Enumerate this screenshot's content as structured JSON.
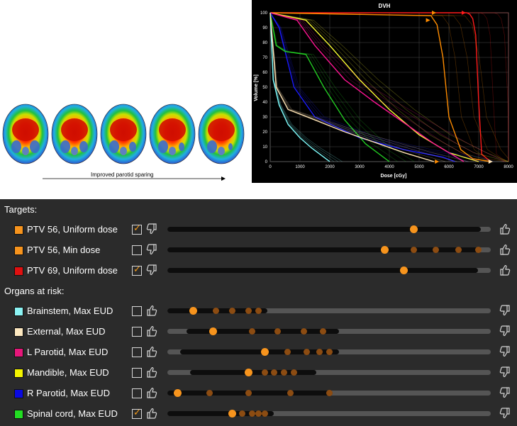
{
  "thumbnails": {
    "caption": "Improved parotid sparing",
    "count": 5
  },
  "dvh": {
    "title": "DVH",
    "xlabel": "Dose [cGy]",
    "ylabel": "Volume [%]",
    "x_ticks": [
      "0",
      "1000",
      "2000",
      "3000",
      "4000",
      "5000",
      "6000",
      "7000",
      "8000"
    ],
    "y_ticks": [
      "0",
      "10",
      "20",
      "30",
      "40",
      "50",
      "60",
      "70",
      "80",
      "90",
      "100"
    ]
  },
  "chart_data": {
    "type": "line",
    "title": "DVH",
    "xlabel": "Dose [cGy]",
    "ylabel": "Volume [%]",
    "xlim": [
      0,
      8000
    ],
    "ylim": [
      0,
      100
    ],
    "grid": true,
    "series": [
      {
        "color": "#ff1a1a",
        "x": [
          0,
          6600,
          6700,
          6800,
          6900,
          7000,
          7100,
          7400
        ],
        "y": [
          100,
          100,
          99,
          96,
          85,
          40,
          5,
          0
        ]
      },
      {
        "color": "#ff8c00",
        "x": [
          0,
          5400,
          5600,
          5800,
          6000,
          6400,
          6800,
          7400
        ],
        "y": [
          100,
          98,
          92,
          70,
          30,
          8,
          2,
          0
        ]
      },
      {
        "color": "#ffff33",
        "x": [
          0,
          1200,
          2000,
          3000,
          4000,
          5000,
          6000,
          7000
        ],
        "y": [
          100,
          95,
          78,
          55,
          35,
          18,
          6,
          0
        ]
      },
      {
        "color": "#ff1493",
        "x": [
          0,
          900,
          1500,
          2500,
          3500,
          4500,
          5500,
          6500
        ],
        "y": [
          100,
          95,
          78,
          55,
          40,
          26,
          12,
          0
        ]
      },
      {
        "color": "#1a1aff",
        "x": [
          0,
          300,
          800,
          1500,
          3000,
          4500,
          5800,
          6200
        ],
        "y": [
          100,
          90,
          50,
          30,
          16,
          8,
          3,
          0
        ]
      },
      {
        "color": "#22cc22",
        "x": [
          0,
          200,
          500,
          1200,
          1800,
          2500,
          3200,
          4000
        ],
        "y": [
          100,
          78,
          74,
          72,
          50,
          28,
          12,
          0
        ]
      },
      {
        "color": "#80ffff",
        "x": [
          0,
          100,
          300,
          600,
          1000,
          1400,
          1800,
          2000
        ],
        "y": [
          100,
          55,
          38,
          25,
          16,
          9,
          3,
          0
        ]
      },
      {
        "color": "#ffe4b5",
        "x": [
          0,
          200,
          600,
          1500,
          2500,
          3500,
          4500,
          5500
        ],
        "y": [
          100,
          50,
          35,
          28,
          20,
          13,
          6,
          0
        ]
      }
    ]
  },
  "targets": {
    "title": "Targets:",
    "rows": [
      {
        "label": "PTV 56, Uniform dose",
        "color": "#f7941d",
        "checked": true,
        "range": [
          0,
          0.97
        ],
        "thumb": 0.76,
        "dots": []
      },
      {
        "label": "PTV 56, Min dose",
        "color": "#f7941d",
        "checked": false,
        "range": [
          0,
          0.96
        ],
        "thumb": 0.67,
        "dots": [
          0.76,
          0.83,
          0.9,
          0.96
        ]
      },
      {
        "label": "PTV 69, Uniform dose",
        "color": "#e01010",
        "checked": true,
        "range": [
          0,
          0.96
        ],
        "thumb": 0.73,
        "dots": []
      }
    ]
  },
  "organs": {
    "title": "Organs at risk:",
    "rows": [
      {
        "label": "Brainstem, Max EUD",
        "color": "#8cf3f3",
        "checked": false,
        "range": [
          0,
          0.31
        ],
        "thumb": 0.08,
        "dots": [
          0.15,
          0.2,
          0.25,
          0.28
        ]
      },
      {
        "label": "External, Max EUD",
        "color": "#fde8c0",
        "checked": false,
        "range": [
          0.06,
          0.53
        ],
        "thumb": 0.14,
        "dots": [
          0.26,
          0.34,
          0.42,
          0.48
        ]
      },
      {
        "label": "L Parotid, Max EUD",
        "color": "#e6177a",
        "checked": false,
        "range": [
          0.04,
          0.53
        ],
        "thumb": 0.3,
        "dots": [
          0.37,
          0.43,
          0.47,
          0.5
        ]
      },
      {
        "label": "Mandible, Max EUD",
        "color": "#f5f500",
        "checked": false,
        "range": [
          0.07,
          0.46
        ],
        "thumb": 0.25,
        "dots": [
          0.3,
          0.33,
          0.36,
          0.39
        ]
      },
      {
        "label": "R Parotid, Max EUD",
        "color": "#0a0ae0",
        "checked": false,
        "range": [
          0,
          0.51
        ],
        "thumb": 0.03,
        "dots": [
          0.13,
          0.25,
          0.38,
          0.5
        ]
      },
      {
        "label": "Spinal cord, Max EUD",
        "color": "#22dd22",
        "checked": true,
        "range": [
          0,
          0.33
        ],
        "thumb": 0.2,
        "dots": [
          0.23,
          0.26,
          0.28,
          0.3
        ]
      }
    ]
  },
  "icons": {
    "thumbs_down": "thumbs-down-icon",
    "thumbs_up": "thumbs-up-icon"
  }
}
